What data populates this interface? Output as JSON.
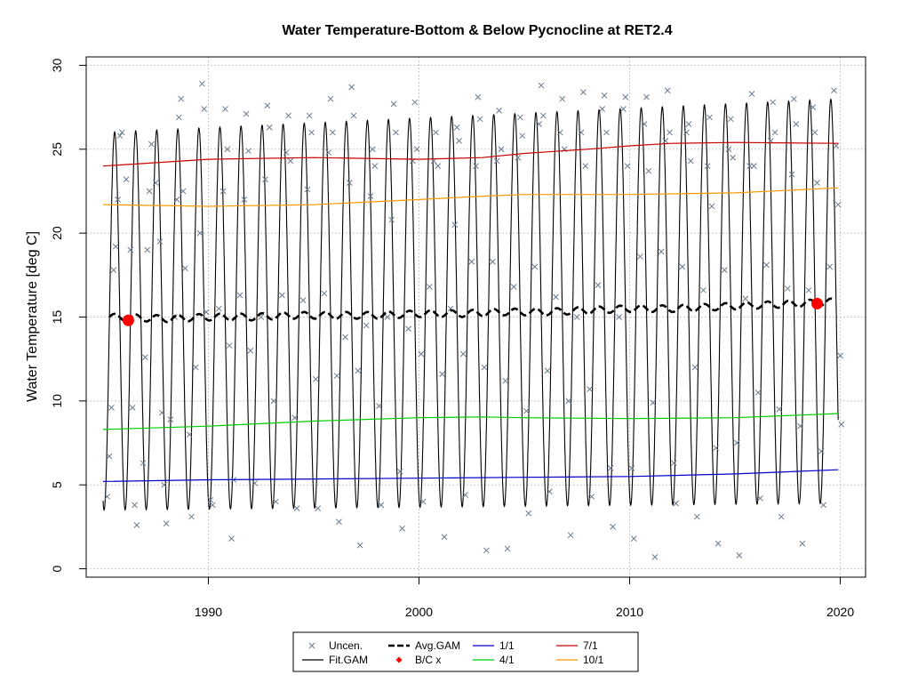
{
  "chart_data": {
    "type": "line",
    "title": "Water Temperature-Bottom & Below Pycnocline at RET2.4",
    "xlabel": "",
    "ylabel": "Water Temperature [deg C]",
    "xlim": [
      1984.2,
      2021.2
    ],
    "ylim": [
      -0.5,
      30.5
    ],
    "x_ticks": [
      1990,
      2000,
      2010,
      2020
    ],
    "y_ticks": [
      0,
      5,
      10,
      15,
      20,
      25,
      30
    ],
    "grid": true,
    "legend_position": "bottom",
    "legend": [
      {
        "label": "Uncen.",
        "symbol": "x",
        "color": "#6a7a8c"
      },
      {
        "label": "Fit.GAM",
        "symbol": "line",
        "color": "#000000"
      },
      {
        "label": "Avg.GAM",
        "symbol": "dashed",
        "color": "#000000"
      },
      {
        "label": "B/C x",
        "symbol": "diamond",
        "color": "#ff0000"
      },
      {
        "label": "1/1",
        "symbol": "line",
        "color": "#0000cc"
      },
      {
        "label": "4/1",
        "symbol": "line",
        "color": "#00cc00"
      },
      {
        "label": "7/1",
        "symbol": "line",
        "color": "#cc0000"
      },
      {
        "label": "10/1",
        "symbol": "line",
        "color": "#ff9900"
      }
    ],
    "fit_gam": {
      "x_start": 1985.0,
      "x_end": 2019.9,
      "seasonal_min": [
        3.5,
        3.9
      ],
      "seasonal_max": [
        26.0,
        28.0
      ]
    },
    "avg_gam": {
      "x": [
        1985.3,
        1988,
        1990,
        1992,
        1994,
        1996,
        1998,
        2000,
        2002,
        2004,
        2006,
        2008,
        2010,
        2012,
        2014,
        2016,
        2018,
        2019.6
      ],
      "y": [
        15.0,
        14.9,
        15.0,
        15.0,
        15.1,
        15.1,
        15.1,
        15.2,
        15.2,
        15.3,
        15.3,
        15.4,
        15.5,
        15.5,
        15.6,
        15.7,
        15.8,
        15.9
      ]
    },
    "bc_points": [
      {
        "x": 1986.2,
        "y": 14.8
      },
      {
        "x": 2018.9,
        "y": 15.8
      }
    ],
    "series": [
      {
        "name": "1/1",
        "color": "#0000cc",
        "x": [
          1985.0,
          1990,
          1995,
          2000,
          2005,
          2010,
          2015,
          2019.9
        ],
        "y": [
          5.2,
          5.3,
          5.35,
          5.4,
          5.45,
          5.5,
          5.65,
          5.9
        ]
      },
      {
        "name": "4/1",
        "color": "#00cc00",
        "x": [
          1985.0,
          1990,
          1995,
          2000,
          2003,
          2005,
          2010,
          2015,
          2019.9
        ],
        "y": [
          8.3,
          8.5,
          8.8,
          9.0,
          9.05,
          9.0,
          8.95,
          9.0,
          9.25
        ]
      },
      {
        "name": "7/1",
        "color": "#cc0000",
        "x": [
          1985.0,
          1990,
          1995,
          2000,
          2003,
          2005,
          2008,
          2010,
          2012,
          2015,
          2019.9
        ],
        "y": [
          24.0,
          24.4,
          24.5,
          24.4,
          24.5,
          24.75,
          25.0,
          25.2,
          25.35,
          25.4,
          25.35
        ]
      },
      {
        "name": "10/1",
        "color": "#ff9900",
        "x": [
          1985.0,
          1990,
          1995,
          2000,
          2003,
          2005,
          2010,
          2015,
          2019.9
        ],
        "y": [
          21.7,
          21.6,
          21.7,
          22.0,
          22.2,
          22.3,
          22.3,
          22.4,
          22.7
        ]
      }
    ],
    "uncensored_points": [
      [
        1985.2,
        4.3
      ],
      [
        1985.3,
        6.7
      ],
      [
        1985.4,
        9.6
      ],
      [
        1985.5,
        17.8
      ],
      [
        1985.6,
        19.2
      ],
      [
        1985.7,
        22.0
      ],
      [
        1985.8,
        25.8
      ],
      [
        1985.9,
        26.0
      ],
      [
        1986.1,
        23.2
      ],
      [
        1986.3,
        19.0
      ],
      [
        1986.4,
        9.6
      ],
      [
        1986.5,
        3.8
      ],
      [
        1986.6,
        2.6
      ],
      [
        1986.9,
        6.3
      ],
      [
        1987.0,
        12.6
      ],
      [
        1987.1,
        19.0
      ],
      [
        1987.2,
        22.5
      ],
      [
        1987.3,
        25.3
      ],
      [
        1987.5,
        23.0
      ],
      [
        1987.7,
        19.5
      ],
      [
        1987.8,
        9.3
      ],
      [
        1987.9,
        5.0
      ],
      [
        1988.0,
        2.7
      ],
      [
        1988.2,
        8.9
      ],
      [
        1988.4,
        15.0
      ],
      [
        1988.5,
        22.0
      ],
      [
        1988.6,
        26.9
      ],
      [
        1988.7,
        28.0
      ],
      [
        1988.8,
        22.5
      ],
      [
        1988.9,
        17.9
      ],
      [
        1989.1,
        8.0
      ],
      [
        1989.2,
        3.1
      ],
      [
        1989.4,
        12.0
      ],
      [
        1989.6,
        20.0
      ],
      [
        1989.7,
        28.9
      ],
      [
        1989.8,
        27.4
      ],
      [
        1989.9,
        15.3
      ],
      [
        1990.1,
        4.1
      ],
      [
        1990.2,
        3.8
      ],
      [
        1990.5,
        15.5
      ],
      [
        1990.7,
        22.5
      ],
      [
        1990.8,
        27.4
      ],
      [
        1990.9,
        25.0
      ],
      [
        1991.0,
        13.3
      ],
      [
        1991.1,
        1.8
      ],
      [
        1991.2,
        5.3
      ],
      [
        1991.5,
        16.3
      ],
      [
        1991.7,
        22.0
      ],
      [
        1991.8,
        27.1
      ],
      [
        1991.9,
        24.9
      ],
      [
        1992.0,
        13.0
      ],
      [
        1992.2,
        5.1
      ],
      [
        1992.5,
        15.0
      ],
      [
        1992.7,
        23.2
      ],
      [
        1992.8,
        27.6
      ],
      [
        1992.9,
        26.3
      ],
      [
        1993.1,
        10.0
      ],
      [
        1993.2,
        4.0
      ],
      [
        1993.5,
        16.3
      ],
      [
        1993.7,
        24.8
      ],
      [
        1993.8,
        27.0
      ],
      [
        1993.9,
        24.3
      ],
      [
        1994.1,
        9.0
      ],
      [
        1994.2,
        3.6
      ],
      [
        1994.5,
        16.0
      ],
      [
        1994.7,
        22.6
      ],
      [
        1994.8,
        27.0
      ],
      [
        1994.9,
        26.0
      ],
      [
        1995.1,
        11.3
      ],
      [
        1995.2,
        3.6
      ],
      [
        1995.5,
        16.4
      ],
      [
        1995.7,
        24.8
      ],
      [
        1995.8,
        28.0
      ],
      [
        1995.9,
        26.0
      ],
      [
        1996.1,
        11.5
      ],
      [
        1996.2,
        2.8
      ],
      [
        1996.5,
        13.8
      ],
      [
        1996.7,
        23.0
      ],
      [
        1996.8,
        28.7
      ],
      [
        1996.9,
        27.0
      ],
      [
        1997.1,
        11.8
      ],
      [
        1997.2,
        1.4
      ],
      [
        1997.5,
        14.5
      ],
      [
        1997.7,
        22.2
      ],
      [
        1997.8,
        25.0
      ],
      [
        1997.9,
        24.0
      ],
      [
        1998.1,
        9.7
      ],
      [
        1998.2,
        3.8
      ],
      [
        1998.5,
        15.0
      ],
      [
        1998.7,
        20.8
      ],
      [
        1998.8,
        27.7
      ],
      [
        1998.9,
        26.0
      ],
      [
        1999.1,
        5.8
      ],
      [
        1999.2,
        2.4
      ],
      [
        1999.5,
        14.3
      ],
      [
        1999.7,
        24.3
      ],
      [
        1999.8,
        27.8
      ],
      [
        1999.9,
        25.0
      ],
      [
        2000.1,
        12.8
      ],
      [
        2000.2,
        4.0
      ],
      [
        2000.5,
        16.8
      ],
      [
        2000.7,
        24.3
      ],
      [
        2000.8,
        26.0
      ],
      [
        2000.9,
        24.0
      ],
      [
        2001.1,
        11.6
      ],
      [
        2001.2,
        1.9
      ],
      [
        2001.5,
        15.5
      ],
      [
        2001.7,
        20.5
      ],
      [
        2001.8,
        26.3
      ],
      [
        2001.9,
        25.5
      ],
      [
        2002.1,
        12.8
      ],
      [
        2002.2,
        4.4
      ],
      [
        2002.5,
        18.3
      ],
      [
        2002.7,
        24.0
      ],
      [
        2002.8,
        28.1
      ],
      [
        2002.9,
        26.8
      ],
      [
        2003.1,
        12.0
      ],
      [
        2003.2,
        1.1
      ],
      [
        2003.5,
        18.3
      ],
      [
        2003.7,
        24.3
      ],
      [
        2003.8,
        27.3
      ],
      [
        2003.9,
        25.0
      ],
      [
        2004.1,
        11.2
      ],
      [
        2004.2,
        1.2
      ],
      [
        2004.5,
        16.8
      ],
      [
        2004.7,
        24.5
      ],
      [
        2004.8,
        26.9
      ],
      [
        2004.9,
        25.8
      ],
      [
        2005.1,
        9.4
      ],
      [
        2005.2,
        3.3
      ],
      [
        2005.5,
        18.0
      ],
      [
        2005.7,
        26.5
      ],
      [
        2005.8,
        28.8
      ],
      [
        2005.9,
        27.0
      ],
      [
        2006.1,
        11.8
      ],
      [
        2006.2,
        4.6
      ],
      [
        2006.5,
        16.2
      ],
      [
        2006.7,
        26.0
      ],
      [
        2006.8,
        28.0
      ],
      [
        2006.9,
        25.0
      ],
      [
        2007.1,
        10.0
      ],
      [
        2007.2,
        2.0
      ],
      [
        2007.5,
        15.0
      ],
      [
        2007.7,
        26.0
      ],
      [
        2007.8,
        28.4
      ],
      [
        2007.9,
        24.0
      ],
      [
        2008.1,
        10.7
      ],
      [
        2008.2,
        4.3
      ],
      [
        2008.5,
        16.9
      ],
      [
        2008.7,
        27.4
      ],
      [
        2008.8,
        28.2
      ],
      [
        2008.9,
        26.0
      ],
      [
        2009.1,
        6.0
      ],
      [
        2009.2,
        2.5
      ],
      [
        2009.5,
        15.0
      ],
      [
        2009.7,
        27.4
      ],
      [
        2009.8,
        28.1
      ],
      [
        2009.9,
        24.0
      ],
      [
        2010.1,
        6.0
      ],
      [
        2010.2,
        1.8
      ],
      [
        2010.5,
        18.6
      ],
      [
        2010.7,
        26.5
      ],
      [
        2010.8,
        28.1
      ],
      [
        2010.9,
        23.7
      ],
      [
        2011.1,
        9.9
      ],
      [
        2011.2,
        0.7
      ],
      [
        2011.5,
        18.9
      ],
      [
        2011.7,
        25.5
      ],
      [
        2011.8,
        28.5
      ],
      [
        2011.9,
        26.0
      ],
      [
        2012.1,
        6.3
      ],
      [
        2012.2,
        3.9
      ],
      [
        2012.5,
        18.0
      ],
      [
        2012.7,
        26.0
      ],
      [
        2012.8,
        26.5
      ],
      [
        2012.9,
        24.3
      ],
      [
        2013.1,
        12.0
      ],
      [
        2013.2,
        3.1
      ],
      [
        2013.5,
        16.6
      ],
      [
        2013.7,
        24.0
      ],
      [
        2013.8,
        26.9
      ],
      [
        2013.9,
        21.6
      ],
      [
        2014.1,
        7.2
      ],
      [
        2014.2,
        1.5
      ],
      [
        2014.5,
        17.8
      ],
      [
        2014.7,
        25.0
      ],
      [
        2014.8,
        26.8
      ],
      [
        2014.9,
        24.5
      ],
      [
        2015.1,
        7.5
      ],
      [
        2015.2,
        0.8
      ],
      [
        2015.5,
        16.1
      ],
      [
        2015.7,
        24.0
      ],
      [
        2015.8,
        28.3
      ],
      [
        2015.9,
        24.0
      ],
      [
        2016.1,
        10.5
      ],
      [
        2016.2,
        4.2
      ],
      [
        2016.5,
        18.1
      ],
      [
        2016.7,
        25.5
      ],
      [
        2016.8,
        27.8
      ],
      [
        2016.9,
        26.0
      ],
      [
        2017.1,
        9.5
      ],
      [
        2017.2,
        3.1
      ],
      [
        2017.5,
        16.7
      ],
      [
        2017.7,
        23.5
      ],
      [
        2017.8,
        28.0
      ],
      [
        2017.9,
        26.5
      ],
      [
        2018.1,
        8.5
      ],
      [
        2018.2,
        1.5
      ],
      [
        2018.5,
        16.6
      ],
      [
        2018.7,
        27.5
      ],
      [
        2018.8,
        26.0
      ],
      [
        2018.9,
        23.0
      ],
      [
        2019.1,
        7.0
      ],
      [
        2019.2,
        3.8
      ],
      [
        2019.5,
        18.0
      ],
      [
        2019.7,
        28.5
      ],
      [
        2019.8,
        25.2
      ],
      [
        2019.9,
        21.7
      ],
      [
        2020.0,
        12.7
      ],
      [
        2020.05,
        8.6
      ]
    ]
  }
}
